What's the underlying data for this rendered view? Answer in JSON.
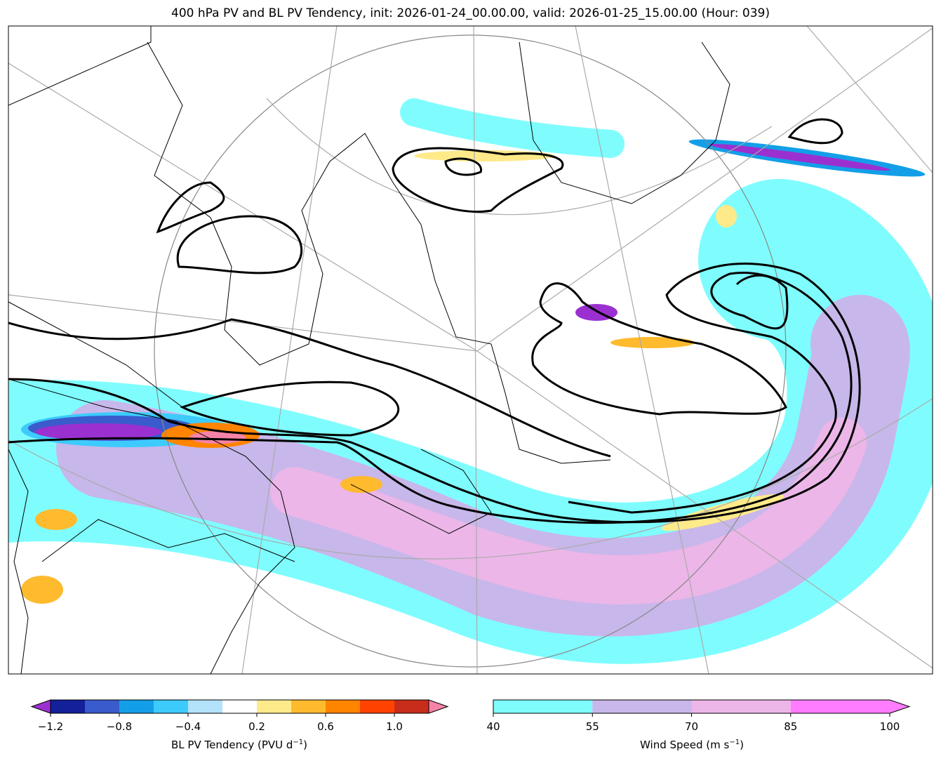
{
  "title": "400 hPa PV and BL PV Tendency, init: 2026-01-24_00.00.00, valid: 2026-01-25_15.00.00 (Hour: 039)",
  "colorbar_pv": {
    "label": "BL PV Tendency (PVU d",
    "label_sup": "−1",
    "label_end": ")",
    "ticks": [
      "−1.2",
      "−0.8",
      "−0.4",
      "0.2",
      "0.6",
      "1.0"
    ],
    "levels": [
      -1.2,
      -1.0,
      -0.8,
      -0.6,
      -0.4,
      -0.2,
      0.2,
      0.4,
      0.6,
      0.8,
      1.0,
      1.2
    ],
    "under_color": "#9b30d0",
    "over_color": "#f783a8",
    "colors": [
      "#13209a",
      "#3a5bcc",
      "#139fe8",
      "#3ccbfc",
      "#b3e2fb",
      "#ffffff",
      "#ffea8a",
      "#ffba2e",
      "#ff8400",
      "#ff4200",
      "#c82d1b"
    ]
  },
  "colorbar_wind": {
    "label": "Wind Speed (m s",
    "label_sup": "−1",
    "label_end": ")",
    "ticks": [
      "40",
      "55",
      "70",
      "85",
      "100"
    ],
    "colors": [
      "#7ffdfe",
      "#c8b7ea",
      "#ecb6e8",
      "#ff7dfe"
    ]
  }
}
